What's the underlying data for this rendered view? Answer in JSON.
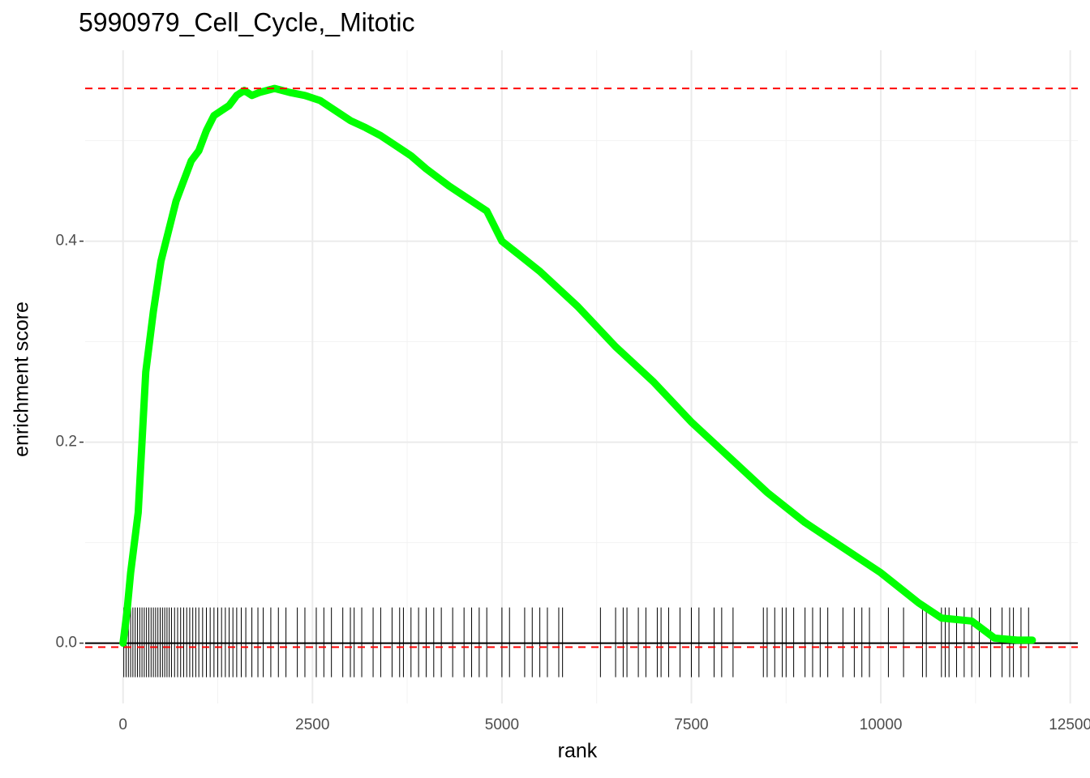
{
  "chart_data": {
    "type": "gsea",
    "title": "5990979_Cell_Cycle,_Mitotic",
    "x_label": "rank",
    "y_label": "enrichment score",
    "xlim": [
      -500,
      12600
    ],
    "ylim": [
      -0.06,
      0.59
    ],
    "xticks": [
      0,
      2500,
      5000,
      7500,
      10000,
      12500
    ],
    "yticks": [
      {
        "value": 0,
        "label": "0.0"
      },
      0.2,
      0.4
    ],
    "xminor": [
      1250,
      3750,
      6250,
      8750,
      11250
    ],
    "yminor": [
      0.1,
      0.3,
      0.5
    ],
    "grid": true,
    "x": [
      0,
      50,
      100,
      150,
      200,
      250,
      300,
      350,
      400,
      500,
      600,
      700,
      800,
      900,
      1000,
      1100,
      1200,
      1300,
      1400,
      1500,
      1600,
      1700,
      1800,
      2000,
      2200,
      2400,
      2600,
      2800,
      3000,
      3200,
      3400,
      3600,
      3800,
      4000,
      4300,
      4600,
      4800,
      5000,
      5500,
      6000,
      6500,
      7000,
      7500,
      8000,
      8500,
      9000,
      9500,
      10000,
      10500,
      10800,
      11200,
      11500,
      11800,
      12000
    ],
    "series": [
      {
        "color": "#00ff00",
        "values": [
          0.0,
          0.03,
          0.07,
          0.1,
          0.13,
          0.2,
          0.27,
          0.3,
          0.33,
          0.38,
          0.41,
          0.44,
          0.46,
          0.48,
          0.49,
          0.51,
          0.525,
          0.53,
          0.535,
          0.545,
          0.55,
          0.545,
          0.548,
          0.552,
          0.548,
          0.545,
          0.54,
          0.53,
          0.52,
          0.513,
          0.505,
          0.495,
          0.485,
          0.472,
          0.455,
          0.44,
          0.43,
          0.4,
          0.37,
          0.335,
          0.295,
          0.26,
          0.22,
          0.185,
          0.15,
          0.12,
          0.095,
          0.07,
          0.04,
          0.025,
          0.022,
          0.005,
          0.003,
          0.003
        ]
      }
    ],
    "hits": [
      10,
      40,
      70,
      100,
      130,
      160,
      190,
      220,
      250,
      280,
      310,
      340,
      370,
      400,
      430,
      460,
      490,
      520,
      550,
      580,
      610,
      640,
      680,
      720,
      760,
      800,
      840,
      880,
      920,
      960,
      1000,
      1050,
      1100,
      1150,
      1200,
      1250,
      1300,
      1350,
      1400,
      1450,
      1500,
      1560,
      1620,
      1700,
      1780,
      1850,
      1950,
      2050,
      2150,
      2300,
      2400,
      2550,
      2650,
      2750,
      2900,
      3000,
      3050,
      3150,
      3300,
      3400,
      3550,
      3650,
      3700,
      3800,
      3900,
      4000,
      4100,
      4200,
      4350,
      4500,
      4600,
      4700,
      4800,
      5000,
      5100,
      5300,
      5400,
      5500,
      5600,
      5750,
      5800,
      6300,
      6500,
      6600,
      6650,
      6800,
      6900,
      7050,
      7100,
      7200,
      7350,
      7500,
      7600,
      7800,
      7900,
      8050,
      8450,
      8500,
      8600,
      8700,
      8750,
      8850,
      9000,
      9100,
      9200,
      9300,
      9500,
      9650,
      9750,
      9850,
      10100,
      10300,
      10550,
      10600,
      10800,
      10850,
      10900,
      11000,
      11100,
      11200,
      11300,
      11450,
      11600,
      11700,
      11750,
      11850,
      11950
    ],
    "hit_color": "#000000",
    "zero_line": 0,
    "reference_lines": [
      0.552,
      -0.004
    ],
    "reference_color": "#ff0000"
  }
}
